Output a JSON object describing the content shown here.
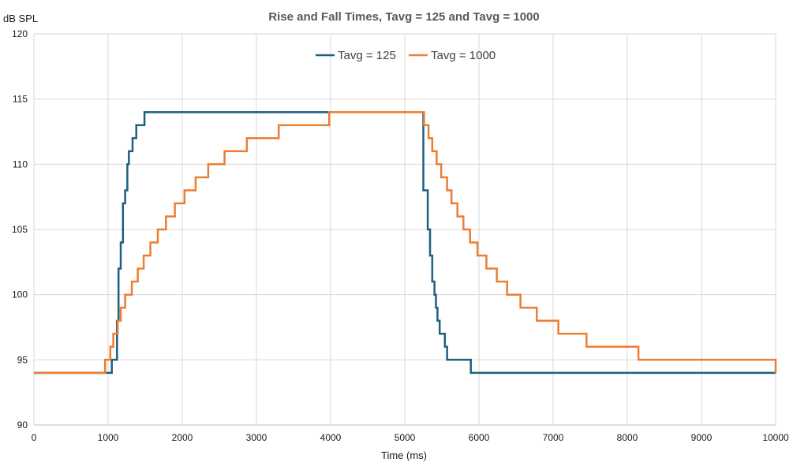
{
  "chart_data": {
    "type": "line",
    "title": "Rise and Fall Times, Tavg = 125 and Tavg = 1000",
    "xlabel": "Time (ms)",
    "ylabel": "dB SPL",
    "xlim": [
      0,
      10000
    ],
    "ylim": [
      90,
      120
    ],
    "x_ticks": [
      0,
      1000,
      2000,
      3000,
      4000,
      5000,
      6000,
      7000,
      8000,
      9000,
      10000
    ],
    "y_ticks": [
      90,
      95,
      100,
      105,
      110,
      115,
      120
    ],
    "grid": true,
    "legend_position": "top-center",
    "series": [
      {
        "name": "Tavg = 125",
        "color": "#1f5f80",
        "step": true,
        "points": [
          [
            0,
            94
          ],
          [
            1000,
            94
          ],
          [
            1050,
            95
          ],
          [
            1120,
            98
          ],
          [
            1140,
            102
          ],
          [
            1170,
            104
          ],
          [
            1200,
            107
          ],
          [
            1230,
            108
          ],
          [
            1260,
            110
          ],
          [
            1280,
            111
          ],
          [
            1330,
            112
          ],
          [
            1380,
            113
          ],
          [
            1490,
            114
          ],
          [
            4000,
            114
          ],
          [
            5200,
            114
          ],
          [
            5250,
            108
          ],
          [
            5310,
            105
          ],
          [
            5340,
            103
          ],
          [
            5370,
            101
          ],
          [
            5400,
            100
          ],
          [
            5420,
            99
          ],
          [
            5440,
            98
          ],
          [
            5470,
            97
          ],
          [
            5540,
            96
          ],
          [
            5570,
            95
          ],
          [
            5890,
            94
          ],
          [
            10000,
            94
          ]
        ]
      },
      {
        "name": "Tavg = 1000",
        "color": "#ed7d31",
        "step": true,
        "points": [
          [
            0,
            94
          ],
          [
            950,
            94
          ],
          [
            960,
            95
          ],
          [
            1030,
            96
          ],
          [
            1070,
            97
          ],
          [
            1130,
            98
          ],
          [
            1170,
            99
          ],
          [
            1230,
            100
          ],
          [
            1320,
            101
          ],
          [
            1400,
            102
          ],
          [
            1480,
            103
          ],
          [
            1570,
            104
          ],
          [
            1670,
            105
          ],
          [
            1780,
            106
          ],
          [
            1900,
            107
          ],
          [
            2030,
            108
          ],
          [
            2180,
            109
          ],
          [
            2350,
            110
          ],
          [
            2570,
            111
          ],
          [
            2870,
            112
          ],
          [
            3300,
            113
          ],
          [
            3980,
            114
          ],
          [
            5220,
            114
          ],
          [
            5260,
            113
          ],
          [
            5320,
            112
          ],
          [
            5370,
            111
          ],
          [
            5430,
            110
          ],
          [
            5490,
            109
          ],
          [
            5570,
            108
          ],
          [
            5630,
            107
          ],
          [
            5710,
            106
          ],
          [
            5790,
            105
          ],
          [
            5880,
            104
          ],
          [
            5980,
            103
          ],
          [
            6100,
            102
          ],
          [
            6240,
            101
          ],
          [
            6380,
            100
          ],
          [
            6560,
            99
          ],
          [
            6780,
            98
          ],
          [
            7070,
            97
          ],
          [
            7450,
            96
          ],
          [
            8150,
            95
          ],
          [
            9990,
            95
          ],
          [
            10000,
            94
          ]
        ]
      }
    ]
  }
}
